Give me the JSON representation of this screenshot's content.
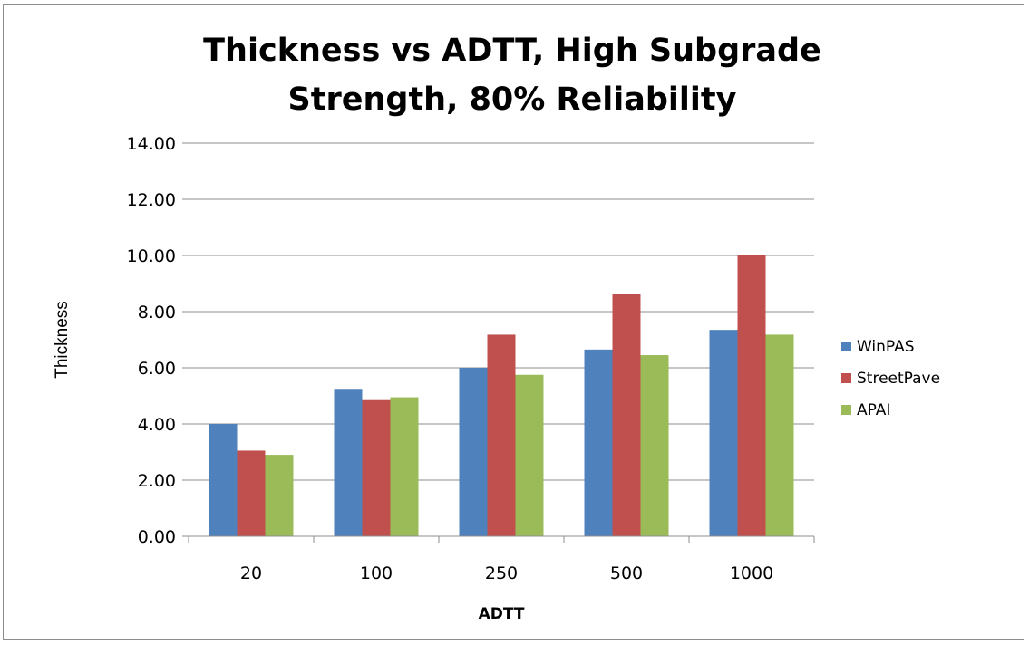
{
  "chart_data": {
    "type": "bar",
    "title_lines": [
      "Thickness vs ADTT, High Subgrade",
      "Strength, 80% Reliability"
    ],
    "xlabel": "ADTT",
    "ylabel": "Thickness",
    "categories": [
      "20",
      "100",
      "250",
      "500",
      "1000"
    ],
    "series": [
      {
        "name": "WinPAS",
        "color": "#4f81bd",
        "values": [
          4.0,
          5.25,
          6.0,
          6.65,
          7.35
        ]
      },
      {
        "name": "StreetPave",
        "color": "#c0504d",
        "values": [
          3.05,
          4.88,
          7.18,
          8.62,
          10.0
        ]
      },
      {
        "name": "APAI",
        "color": "#9bbb59",
        "values": [
          2.9,
          4.95,
          5.75,
          6.45,
          7.18
        ]
      }
    ],
    "ylim": [
      0,
      14
    ],
    "ytick_labels": [
      "0.00",
      "2.00",
      "4.00",
      "6.00",
      "8.00",
      "10.00",
      "12.00",
      "14.00"
    ],
    "grid": true,
    "legend_position": "right"
  }
}
